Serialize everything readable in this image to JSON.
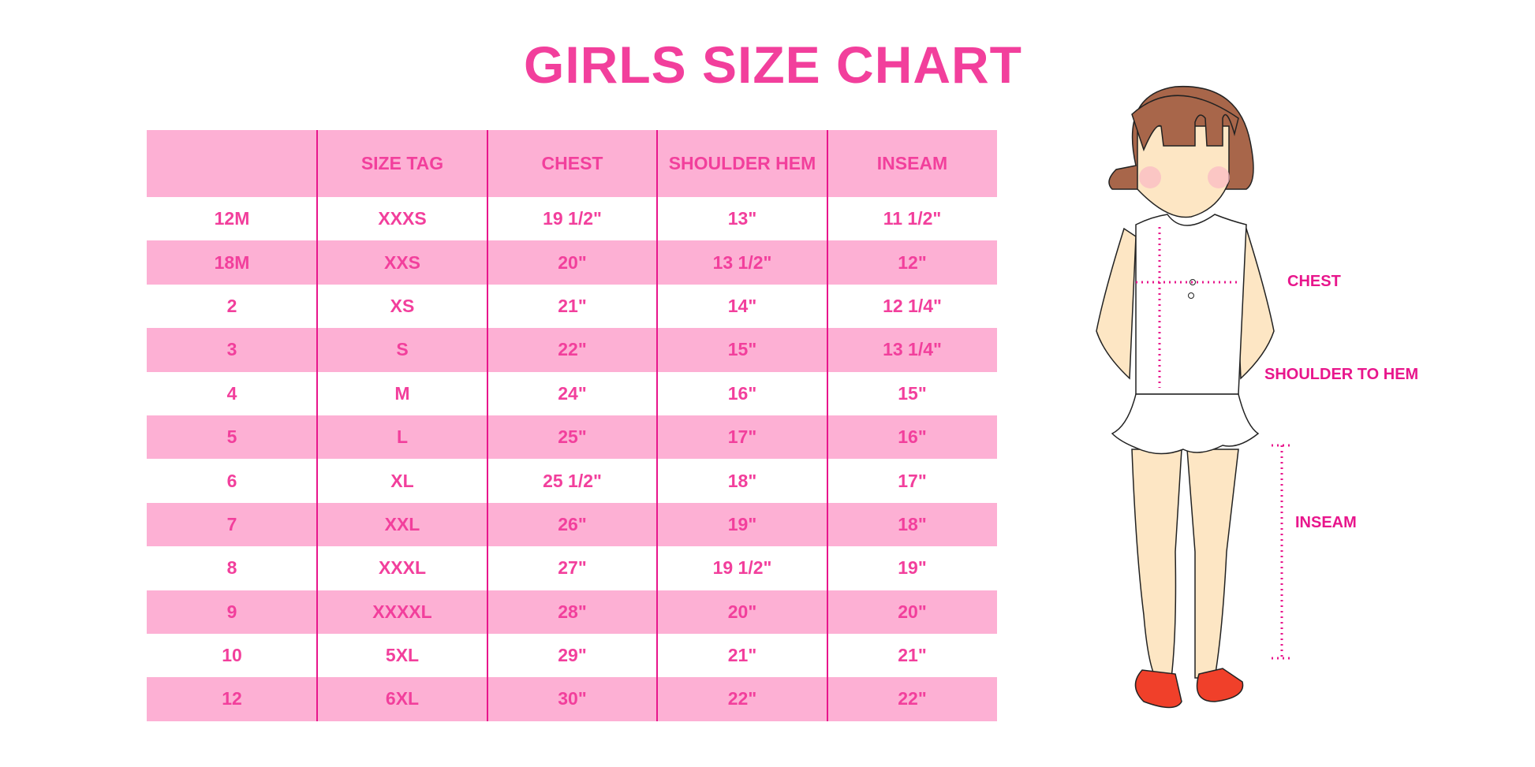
{
  "title": "GIRLS SIZE CHART",
  "colors": {
    "accent": "#f23f9c",
    "stripe": "#fdb0d4",
    "divider": "#e8168c"
  },
  "table": {
    "headers": [
      "",
      "SIZE TAG",
      "CHEST",
      "SHOULDER HEM",
      "INSEAM"
    ],
    "rows": [
      [
        "12M",
        "XXXS",
        "19 1/2\"",
        "13\"",
        "11 1/2\""
      ],
      [
        "18M",
        "XXS",
        "20\"",
        "13 1/2\"",
        "12\""
      ],
      [
        "2",
        "XS",
        "21\"",
        "14\"",
        "12 1/4\""
      ],
      [
        "3",
        "S",
        "22\"",
        "15\"",
        "13 1/4\""
      ],
      [
        "4",
        "M",
        "24\"",
        "16\"",
        "15\""
      ],
      [
        "5",
        "L",
        "25\"",
        "17\"",
        "16\""
      ],
      [
        "6",
        "XL",
        "25 1/2\"",
        "18\"",
        "17\""
      ],
      [
        "7",
        "XXL",
        "26\"",
        "19\"",
        "18\""
      ],
      [
        "8",
        "XXXL",
        "27\"",
        "19 1/2\"",
        "19\""
      ],
      [
        "9",
        "XXXXL",
        "28\"",
        "20\"",
        "20\""
      ],
      [
        "10",
        "5XL",
        "29\"",
        "21\"",
        "21\""
      ],
      [
        "12",
        "6XL",
        "30\"",
        "22\"",
        "22\""
      ]
    ]
  },
  "figure": {
    "labels": {
      "chest": "CHEST",
      "shoulder_to_hem": "SHOULDER TO HEM",
      "inseam": "INSEAM"
    }
  }
}
